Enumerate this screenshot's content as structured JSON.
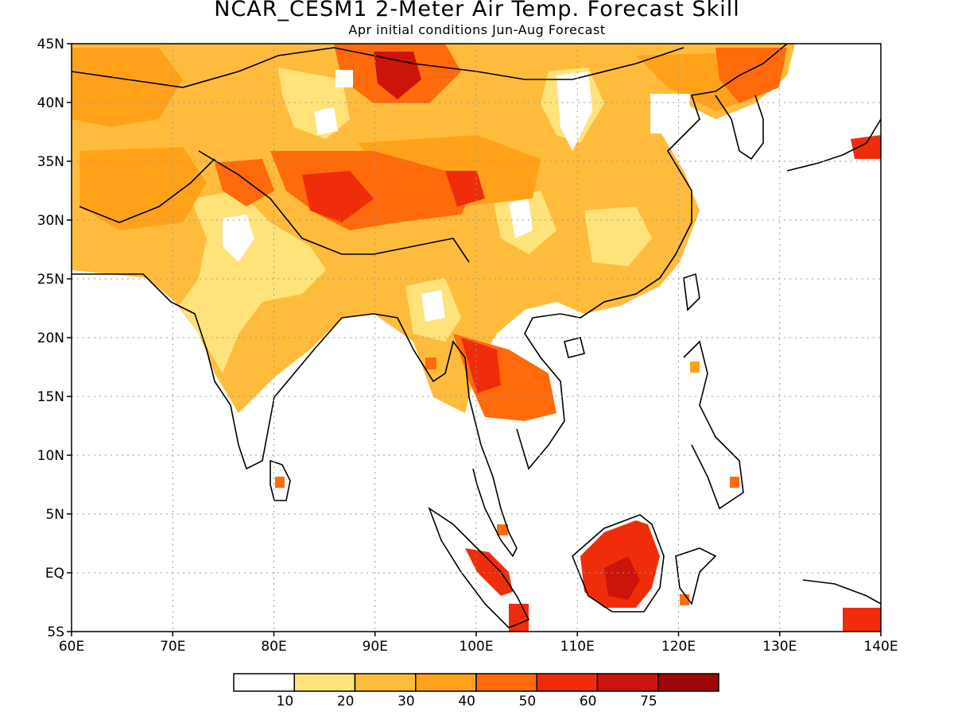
{
  "title": "NCAR_CESM1 2-Meter Air Temp. Forecast Skill",
  "subtitle": "Apr initial conditions  Jun-Aug Forecast",
  "map": {
    "lon_range": [
      60,
      140
    ],
    "lat_range": [
      -5,
      45
    ],
    "lon_ticks": [
      "60E",
      "70E",
      "80E",
      "90E",
      "100E",
      "110E",
      "120E",
      "130E",
      "140E"
    ],
    "lat_ticks": [
      "45N",
      "40N",
      "35N",
      "30N",
      "25N",
      "20N",
      "15N",
      "10N",
      "5N",
      "EQ",
      "5S"
    ],
    "gridlines": true
  },
  "colorbar": {
    "colors": [
      "#ffffff",
      "#ffe37a",
      "#ffbc3c",
      "#ffa21a",
      "#ff6a0a",
      "#f02d0a",
      "#cc140a",
      "#a10606"
    ],
    "labels": [
      "10",
      "20",
      "30",
      "40",
      "50",
      "60",
      "75"
    ]
  }
}
